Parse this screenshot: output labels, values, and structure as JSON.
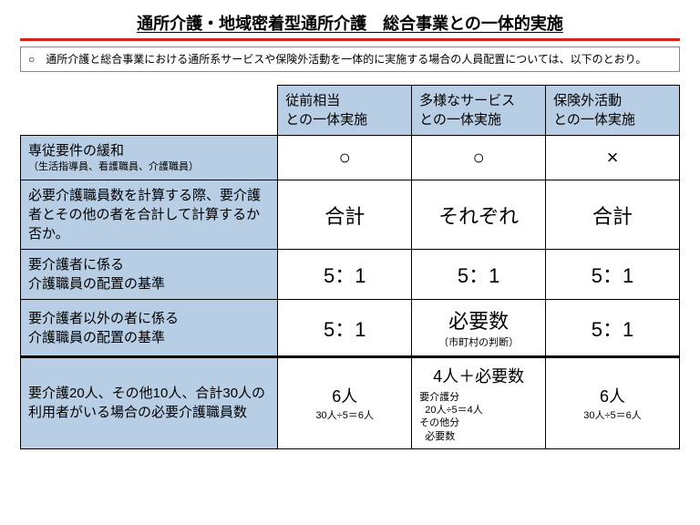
{
  "title": "通所介護・地域密着型通所介護　総合事業との一体的実施",
  "note": "○　通所介護と総合事業における通所系サービスや保険外活動を一体的に実施する場合の人員配置については、以下のとおり。",
  "colors": {
    "header_bg": "#b8cee4",
    "rule": "#d8221b"
  },
  "columns": [
    {
      "l1": "従前相当",
      "l2": "との一体実施"
    },
    {
      "l1": "多様なサービス",
      "l2": "との一体実施"
    },
    {
      "l1": "保険外活動",
      "l2": "との一体実施"
    }
  ],
  "rows": [
    {
      "head": "専従要件の緩和",
      "sub": "（生活指導員、看護職員、介護職員）",
      "cells": [
        {
          "main": "○",
          "cls": "big"
        },
        {
          "main": "○",
          "cls": "big"
        },
        {
          "main": "×",
          "cls": "big"
        }
      ]
    },
    {
      "head": "必要介護職員数を計算する際、要介護者とその他の者を合計して計算するか否か。",
      "cells": [
        {
          "main": "合計",
          "cls": "big"
        },
        {
          "main": "それぞれ",
          "cls": "big"
        },
        {
          "main": "合計",
          "cls": "big"
        }
      ]
    },
    {
      "head": "要介護者に係る\n介護職員の配置の基準",
      "cells": [
        {
          "main": "5：1",
          "cls": "big"
        },
        {
          "main": "5：1",
          "cls": "big"
        },
        {
          "main": "5：1",
          "cls": "big"
        }
      ]
    },
    {
      "head": "要介護者以外の者に係る\n介護職員の配置の基準",
      "cells": [
        {
          "main": "5：1",
          "cls": "big"
        },
        {
          "main": "必要数",
          "cls": "big",
          "sub": "（市町村の判断）"
        },
        {
          "main": "5：1",
          "cls": "big"
        }
      ]
    },
    {
      "head": "要介護20人、その他10人、合計30人の利用者がいる場合の必要介護職員数",
      "thick": true,
      "cells": [
        {
          "main": "6人",
          "cls": "mid",
          "sub": "30人÷5＝6人"
        },
        {
          "main": "4人＋必要数",
          "cls": "mid",
          "calc": "要介護分\n　20人÷5＝4人\nその他分\n　必要数"
        },
        {
          "main": "6人",
          "cls": "mid",
          "sub": "30人÷5＝6人"
        }
      ]
    }
  ]
}
